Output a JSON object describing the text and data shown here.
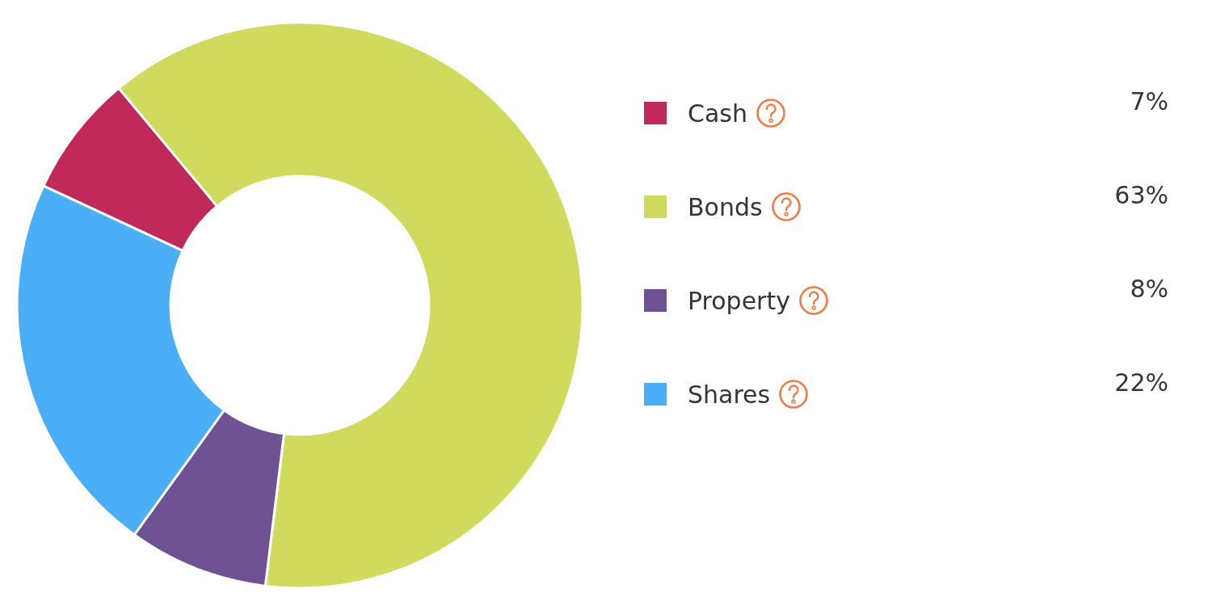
{
  "chart_data": {
    "type": "donut",
    "categories": [
      "Cash",
      "Bonds",
      "Property",
      "Shares"
    ],
    "values": [
      7,
      63,
      8,
      22
    ],
    "colors": [
      "#c0295a",
      "#d0db5e",
      "#6e5294",
      "#4aaff6"
    ],
    "value_labels": [
      "7%",
      "63%",
      "8%",
      "22%"
    ],
    "legend": "right"
  }
}
